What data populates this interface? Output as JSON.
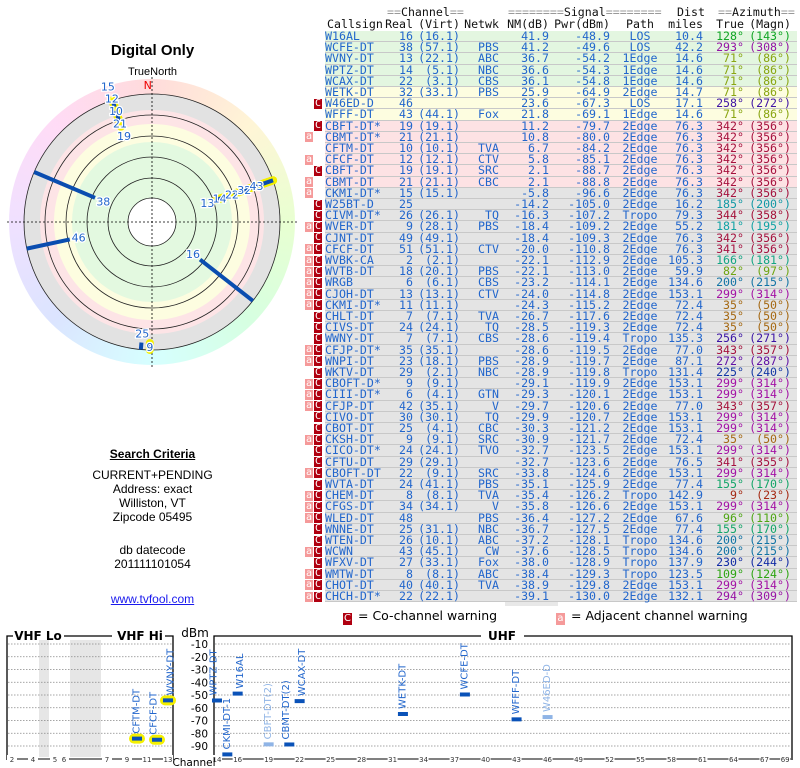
{
  "left": {
    "title": "Digital Only",
    "north_label": "TrueNorth",
    "north_marker": "N",
    "criteria_title": "Search Criteria",
    "criteria_lines": [
      "CURRENT+PENDING",
      "Address: exact",
      "Williston, VT",
      "Zipcode 05495"
    ],
    "datecode_label": "db datecode",
    "datecode_value": "201111101054",
    "link": "www.tvfool.com"
  },
  "table": {
    "group_headers": {
      "channel": "Channel",
      "signal": "Signal",
      "dist": "Dist",
      "azimuth": "Azimuth"
    },
    "columns": [
      "Callsign",
      "Real",
      "(Virt)",
      "Netwk",
      "NM(dB)",
      "Pwr(dBm)",
      "Path",
      "miles",
      "True",
      "(Magn)"
    ],
    "row_colors": {
      "green": "#e3f6e0",
      "yellow": "#fdfde0",
      "pink": "#fde2e4",
      "gray": "#e4e4e4"
    },
    "rows": [
      [
        "W16AL",
        "16",
        "(16.1)",
        "",
        "41.9",
        "-48.9",
        "LOS",
        "10.4",
        "128°",
        "(143°)",
        "",
        "green"
      ],
      [
        "WCFE-DT",
        "38",
        "(57.1)",
        "PBS",
        "41.2",
        "-49.6",
        "LOS",
        "42.2",
        "293°",
        "(308°)",
        "",
        "green"
      ],
      [
        "WVNY-DT",
        "13",
        "(22.1)",
        "ABC",
        "36.7",
        "-54.2",
        "1Edge",
        "14.6",
        "71°",
        "(86°)",
        "",
        "green"
      ],
      [
        "WPTZ-DT",
        "14",
        "(5.1)",
        "NBC",
        "36.6",
        "-54.3",
        "1Edge",
        "14.6",
        "71°",
        "(86°)",
        "",
        "green"
      ],
      [
        "WCAX-DT",
        "22",
        "(3.1)",
        "CBS",
        "36.1",
        "-54.8",
        "1Edge",
        "14.6",
        "71°",
        "(86°)",
        "",
        "green"
      ],
      [
        "WETK-DT",
        "32",
        "(33.1)",
        "PBS",
        "25.9",
        "-64.9",
        "2Edge",
        "14.7",
        "71°",
        "(86°)",
        "",
        "yellow"
      ],
      [
        "W46ED-D",
        "46",
        "",
        "",
        "23.6",
        "-67.3",
        "LOS",
        "17.1",
        "258°",
        "(272°)",
        "C",
        "yellow"
      ],
      [
        "WFFF-DT",
        "43",
        "(44.1)",
        "Fox",
        "21.8",
        "-69.1",
        "1Edge",
        "14.6",
        "71°",
        "(86°)",
        "",
        "yellow"
      ],
      [
        "CBFT-DT*",
        "19",
        "(19.1)",
        "",
        "11.2",
        "-79.7",
        "2Edge",
        "76.3",
        "342°",
        "(356°)",
        "C",
        "pink"
      ],
      [
        "CBMT-DT*",
        "21",
        "(21.1)",
        "",
        "10.8",
        "-80.0",
        "2Edge",
        "76.3",
        "342°",
        "(356°)",
        "a",
        "pink"
      ],
      [
        "CFTM-DT",
        "10",
        "(10.1)",
        "TVA",
        "6.7",
        "-84.2",
        "2Edge",
        "76.3",
        "342°",
        "(356°)",
        "",
        "pink"
      ],
      [
        "CFCF-DT",
        "12",
        "(12.1)",
        "CTV",
        "5.8",
        "-85.1",
        "2Edge",
        "76.3",
        "342°",
        "(356°)",
        "a",
        "pink"
      ],
      [
        "CBFT-DT",
        "19",
        "(19.1)",
        "SRC",
        "2.1",
        "-88.7",
        "2Edge",
        "76.3",
        "342°",
        "(356°)",
        "C",
        "pink"
      ],
      [
        "CBMT-DT",
        "21",
        "(21.1)",
        "CBC",
        "2.1",
        "-88.8",
        "2Edge",
        "76.3",
        "342°",
        "(356°)",
        "a",
        "pink"
      ],
      [
        "CKMI-DT*",
        "15",
        "(15.1)",
        "",
        "-5.8",
        "-96.6",
        "2Edge",
        "76.3",
        "342°",
        "(356°)",
        "a",
        "gray"
      ],
      [
        "W25BT-D",
        "25",
        "",
        "",
        "-14.2",
        "-105.0",
        "2Edge",
        "16.2",
        "185°",
        "(200°)",
        "C",
        "gray"
      ],
      [
        "CIVM-DT*",
        "26",
        "(26.1)",
        "TQ",
        "-16.3",
        "-107.2",
        "Tropo",
        "79.3",
        "344°",
        "(358°)",
        "C",
        "gray"
      ],
      [
        "WVER-DT",
        "9",
        "(28.1)",
        "PBS",
        "-18.4",
        "-109.2",
        "2Edge",
        "55.2",
        "181°",
        "(195°)",
        "aC",
        "gray"
      ],
      [
        "CJNT-DT",
        "49",
        "(49.1)",
        "",
        "-18.4",
        "-109.3",
        "2Edge",
        "76.3",
        "342°",
        "(356°)",
        "C",
        "gray"
      ],
      [
        "CFCF-DT",
        "51",
        "(51.1)",
        "CTV",
        "-20.0",
        "-110.8",
        "2Edge",
        "76.3",
        "341°",
        "(356°)",
        "aC",
        "gray"
      ],
      [
        "WVBK-CA",
        "2",
        "(2.1)",
        "",
        "-22.1",
        "-112.9",
        "2Edge",
        "105.3",
        "166°",
        "(181°)",
        "aC",
        "gray"
      ],
      [
        "WVTB-DT",
        "18",
        "(20.1)",
        "PBS",
        "-22.1",
        "-113.0",
        "2Edge",
        "59.9",
        "82°",
        "(97°)",
        "aC",
        "gray"
      ],
      [
        "WRGB",
        "6",
        "(6.1)",
        "CBS",
        "-23.2",
        "-114.1",
        "2Edge",
        "134.6",
        "200°",
        "(215°)",
        "aC",
        "gray"
      ],
      [
        "CJOH-DT",
        "13",
        "(13.1)",
        "CTV",
        "-24.0",
        "-114.8",
        "2Edge",
        "153.1",
        "299°",
        "(314°)",
        "aC",
        "gray"
      ],
      [
        "CKMI-DT*",
        "11",
        "(11.1)",
        "",
        "-24.3",
        "-115.2",
        "2Edge",
        "72.4",
        "35°",
        "(50°)",
        "aC",
        "gray"
      ],
      [
        "CHLT-DT",
        "7",
        "(7.1)",
        "TVA",
        "-26.7",
        "-117.6",
        "2Edge",
        "72.4",
        "35°",
        "(50°)",
        "C",
        "gray"
      ],
      [
        "CIVS-DT",
        "24",
        "(24.1)",
        "TQ",
        "-28.5",
        "-119.3",
        "2Edge",
        "72.4",
        "35°",
        "(50°)",
        "C",
        "gray"
      ],
      [
        "WWNY-DT",
        "7",
        "(7.1)",
        "CBS",
        "-28.6",
        "-119.4",
        "Tropo",
        "135.3",
        "256°",
        "(271°)",
        "C",
        "gray"
      ],
      [
        "CFJP-DT*",
        "35",
        "(35.1)",
        "",
        "-28.6",
        "-119.5",
        "2Edge",
        "77.0",
        "343°",
        "(357°)",
        "aC",
        "gray"
      ],
      [
        "WNPI-DT",
        "23",
        "(18.1)",
        "PBS",
        "-28.9",
        "-119.7",
        "2Edge",
        "87.1",
        "272°",
        "(287°)",
        "aC",
        "gray"
      ],
      [
        "WKTV-DT",
        "29",
        "(2.1)",
        "NBC",
        "-28.9",
        "-119.8",
        "Tropo",
        "131.4",
        "225°",
        "(240°)",
        "C",
        "gray"
      ],
      [
        "CBOFT-D*",
        "9",
        "(9.1)",
        "",
        "-29.1",
        "-119.9",
        "2Edge",
        "153.1",
        "299°",
        "(314°)",
        "aC",
        "gray"
      ],
      [
        "CIII-DT*",
        "6",
        "(4.1)",
        "GTN",
        "-29.3",
        "-120.1",
        "2Edge",
        "153.1",
        "299°",
        "(314°)",
        "aC",
        "gray"
      ],
      [
        "CFJP-DT",
        "42",
        "(35.1)",
        "V",
        "-29.7",
        "-120.6",
        "2Edge",
        "77.0",
        "343°",
        "(357°)",
        "aC",
        "gray"
      ],
      [
        "CIVO-DT",
        "30",
        "(30.1)",
        "TQ",
        "-29.9",
        "-120.7",
        "2Edge",
        "153.1",
        "299°",
        "(314°)",
        "C",
        "gray"
      ],
      [
        "CBOT-DT",
        "25",
        "(4.1)",
        "CBC",
        "-30.3",
        "-121.2",
        "2Edge",
        "153.1",
        "299°",
        "(314°)",
        "C",
        "gray"
      ],
      [
        "CKSH-DT",
        "9",
        "(9.1)",
        "SRC",
        "-30.9",
        "-121.7",
        "2Edge",
        "72.4",
        "35°",
        "(50°)",
        "aC",
        "gray"
      ],
      [
        "CICO-DT*",
        "24",
        "(24.1)",
        "TVO",
        "-32.7",
        "-123.5",
        "2Edge",
        "153.1",
        "299°",
        "(314°)",
        "C",
        "gray"
      ],
      [
        "CFTU-DT",
        "29",
        "(29.1)",
        "",
        "-32.7",
        "-123.6",
        "2Edge",
        "76.5",
        "341°",
        "(355°)",
        "C",
        "gray"
      ],
      [
        "CBOFT-DT",
        "22",
        "(9.1)",
        "SRC",
        "-33.8",
        "-124.6",
        "2Edge",
        "153.1",
        "299°",
        "(314°)",
        "aC",
        "gray"
      ],
      [
        "WVTA-DT",
        "24",
        "(41.1)",
        "PBS",
        "-35.1",
        "-125.9",
        "2Edge",
        "77.4",
        "155°",
        "(170°)",
        "C",
        "gray"
      ],
      [
        "CHEM-DT",
        "8",
        "(8.1)",
        "TVA",
        "-35.4",
        "-126.2",
        "Tropo",
        "142.9",
        "9°",
        "(23°)",
        "aC",
        "gray"
      ],
      [
        "CFGS-DT",
        "34",
        "(34.1)",
        "V",
        "-35.8",
        "-126.6",
        "2Edge",
        "153.1",
        "299°",
        "(314°)",
        "aC",
        "gray"
      ],
      [
        "WLED-DT",
        "48",
        "",
        "PBS",
        "-36.4",
        "-127.2",
        "2Edge",
        "67.6",
        "96°",
        "(110°)",
        "aC",
        "gray"
      ],
      [
        "WNNE-DT",
        "25",
        "(31.1)",
        "NBC",
        "-36.7",
        "-127.5",
        "2Edge",
        "77.4",
        "155°",
        "(170°)",
        "C",
        "gray"
      ],
      [
        "WTEN-DT",
        "26",
        "(10.1)",
        "ABC",
        "-37.2",
        "-128.1",
        "Tropo",
        "134.6",
        "200°",
        "(215°)",
        "C",
        "gray"
      ],
      [
        "WCWN",
        "43",
        "(45.1)",
        "CW",
        "-37.6",
        "-128.5",
        "Tropo",
        "134.6",
        "200°",
        "(215°)",
        "aC",
        "gray"
      ],
      [
        "WFXV-DT",
        "27",
        "(33.1)",
        "Fox",
        "-38.0",
        "-128.9",
        "Tropo",
        "137.9",
        "230°",
        "(244°)",
        "C",
        "gray"
      ],
      [
        "WMTW-DT",
        "8",
        "(8.1)",
        "ABC",
        "-38.4",
        "-129.3",
        "Tropo",
        "123.5",
        "109°",
        "(124°)",
        "aC",
        "gray"
      ],
      [
        "CHOT-DT",
        "40",
        "(40.1)",
        "TVA",
        "-38.9",
        "-129.8",
        "2Edge",
        "153.1",
        "299°",
        "(314°)",
        "aC",
        "gray"
      ],
      [
        "CHCH-DT*",
        "22",
        "(22.1)",
        "",
        "-39.1",
        "-130.0",
        "2Edge",
        "132.1",
        "294°",
        "(309°)",
        "aC",
        "gray"
      ]
    ]
  },
  "legend": {
    "co_channel": {
      "badge": "C",
      "text": "= Co-channel warning",
      "color": "#b00010"
    },
    "adjacent": {
      "badge": "a",
      "text": "= Adjacent channel warning",
      "color": "#f59a9a"
    }
  },
  "chart_data": [
    {
      "type": "polar",
      "title": "Digital Only",
      "orientation": "TrueNorth",
      "stations": [
        {
          "ch": "16",
          "az": 128,
          "nm": 41.9,
          "highlight": false
        },
        {
          "ch": "38",
          "az": 293,
          "nm": 41.2,
          "highlight": false
        },
        {
          "ch": "13",
          "az": 71,
          "nm": 36.7,
          "highlight": true
        },
        {
          "ch": "14",
          "az": 71,
          "nm": 36.6,
          "highlight": true
        },
        {
          "ch": "22",
          "az": 71,
          "nm": 36.1,
          "highlight": true
        },
        {
          "ch": "32",
          "az": 71,
          "nm": 25.9,
          "highlight": true
        },
        {
          "ch": "46",
          "az": 258,
          "nm": 23.6,
          "highlight": false
        },
        {
          "ch": "43",
          "az": 71,
          "nm": 21.8,
          "highlight": true
        },
        {
          "ch": "19",
          "az": 342,
          "nm": 11.2,
          "highlight": false
        },
        {
          "ch": "21",
          "az": 342,
          "nm": 10.8,
          "highlight": true
        },
        {
          "ch": "10",
          "az": 342,
          "nm": 6.7,
          "highlight": true
        },
        {
          "ch": "12",
          "az": 342,
          "nm": 5.8,
          "highlight": true
        },
        {
          "ch": "15",
          "az": 342,
          "nm": -5.8,
          "highlight": true
        },
        {
          "ch": "25",
          "az": 185,
          "nm": -14.2,
          "highlight": false
        },
        {
          "ch": "9",
          "az": 181,
          "nm": -18.4,
          "highlight": true
        }
      ]
    },
    {
      "type": "bar",
      "ylabel": "dBm",
      "xlabel": "Channel",
      "ylim": [
        -90,
        -10
      ],
      "yticks": [
        "-10",
        "-20",
        "-30",
        "-40",
        "-50",
        "-60",
        "-70",
        "-80",
        "-90"
      ],
      "bands": {
        "vhf_lo": "VHF Lo",
        "vhf_hi": "VHF Hi",
        "uhf": "UHF"
      },
      "vhf_ticks": [
        "2",
        "4",
        "5",
        "6",
        "7",
        "9",
        "11",
        "13"
      ],
      "uhf_ticks": [
        "14",
        "16",
        "19",
        "22",
        "25",
        "28",
        "31",
        "34",
        "37",
        "40",
        "43",
        "46",
        "49",
        "52",
        "55",
        "58",
        "61",
        "64",
        "67",
        "69"
      ],
      "stations": [
        {
          "label": "CFTM-DT",
          "ch": 10,
          "dbm": -84.2,
          "highlight": true,
          "faded": false
        },
        {
          "label": "CFCF-DT",
          "ch": 12,
          "dbm": -85.1,
          "highlight": true,
          "faded": false
        },
        {
          "label": "WVNY-DT",
          "ch": 13,
          "dbm": -54.2,
          "highlight": true,
          "faded": false
        },
        {
          "label": "WPTZ-DT",
          "ch": 14,
          "dbm": -54.3,
          "highlight": false,
          "faded": false
        },
        {
          "label": "CKMI-DT-1",
          "ch": 15,
          "dbm": -96.6,
          "highlight": false,
          "faded": false
        },
        {
          "label": "W16AL",
          "ch": 16,
          "dbm": -48.9,
          "highlight": false,
          "faded": false
        },
        {
          "label": "CBFT-DT(2)",
          "ch": 19,
          "dbm": -88.7,
          "highlight": false,
          "faded": true
        },
        {
          "label": "CBMT-DT(2)",
          "ch": 21,
          "dbm": -88.8,
          "highlight": false,
          "faded": false
        },
        {
          "label": "WCAX-DT",
          "ch": 22,
          "dbm": -54.8,
          "highlight": false,
          "faded": false
        },
        {
          "label": "WETK-DT",
          "ch": 32,
          "dbm": -64.9,
          "highlight": false,
          "faded": false
        },
        {
          "label": "WCFE-DT",
          "ch": 38,
          "dbm": -49.6,
          "highlight": false,
          "faded": false
        },
        {
          "label": "WFFF-DT",
          "ch": 43,
          "dbm": -69.1,
          "highlight": false,
          "faded": false
        },
        {
          "label": "W46ED-D",
          "ch": 46,
          "dbm": -67.3,
          "highlight": false,
          "faded": true
        }
      ]
    }
  ]
}
